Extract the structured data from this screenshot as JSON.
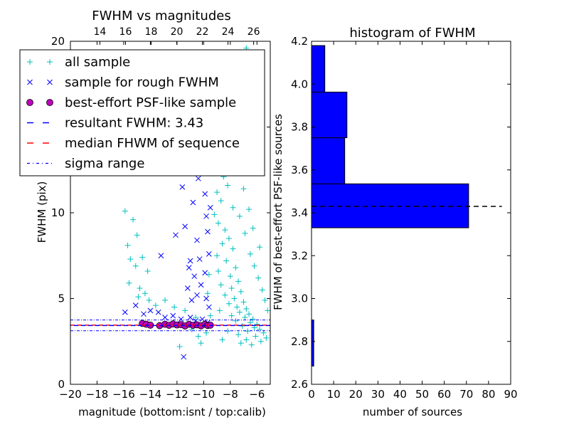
{
  "colors": {
    "all_sample": "#00bfbf",
    "rough_sample": "#0000ff",
    "psf_fill": "#bf00bf",
    "psf_edge": "#000000",
    "resultant_line": "#0000ff",
    "median_line": "#ff0000",
    "sigma_line": "#0000ff",
    "hist_bar": "#0000ff",
    "hist_line": "#000000"
  },
  "chart_data": [
    {
      "type": "scatter",
      "title": "FWHM vs magnitudes",
      "xlabel": "magnitude (bottom:isnt / top:calib)",
      "ylabel": "FWHM (pix)",
      "xlim": [
        -20,
        -5
      ],
      "ylim": [
        0,
        20
      ],
      "x_ticks": [
        -20,
        -18,
        -16,
        -14,
        -12,
        -10,
        -8,
        -6
      ],
      "x_tick_labels": [
        "−20",
        "−18",
        "−16",
        "−14",
        "−12",
        "−10",
        "−8",
        "−6"
      ],
      "y_ticks": [
        0,
        5,
        10,
        15,
        20
      ],
      "y_tick_labels": [
        "0",
        "5",
        "10",
        "15",
        "20"
      ],
      "top_ticks": [
        14,
        16,
        18,
        20,
        22,
        24,
        26
      ],
      "top_tick_labels": [
        "14",
        "16",
        "18",
        "20",
        "22",
        "24",
        "26"
      ],
      "top_xlim": [
        11.7,
        27.3
      ],
      "legend_placement": "upper-left",
      "legend": [
        {
          "label": "all sample",
          "marker": "plus"
        },
        {
          "label": "sample for rough FWHM",
          "marker": "x"
        },
        {
          "label": "best-effort PSF-like sample",
          "marker": "circle"
        },
        {
          "label": "resultant FWHM: 3.43",
          "marker": "dash"
        },
        {
          "label": "median FHWM of sequence",
          "marker": "dash-red"
        },
        {
          "label": "sigma range",
          "marker": "dashdot"
        }
      ],
      "series": [
        {
          "name": "all sample",
          "marker": "plus",
          "points": [
            [
              -15.9,
              10.1
            ],
            [
              -15.3,
              9.6
            ],
            [
              -15.7,
              8.1
            ],
            [
              -15.0,
              8.7
            ],
            [
              -14.6,
              7.4
            ],
            [
              -15.5,
              7.3
            ],
            [
              -15.1,
              6.9
            ],
            [
              -14.2,
              6.6
            ],
            [
              -14.8,
              5.6
            ],
            [
              -15.6,
              5.9
            ],
            [
              -14.9,
              5.1
            ],
            [
              -14.4,
              5.3
            ],
            [
              -14.1,
              4.9
            ],
            [
              -13.6,
              4.6
            ],
            [
              -12.9,
              4.9
            ],
            [
              -12.2,
              4.5
            ],
            [
              -11.4,
              4.3
            ],
            [
              -10.9,
              3.2
            ],
            [
              -10.6,
              3.9
            ],
            [
              -10.4,
              2.8
            ],
            [
              -11.8,
              2.2
            ],
            [
              -10.2,
              2.4
            ],
            [
              -9.8,
              3.0
            ],
            [
              -9.4,
              14.5
            ],
            [
              -9.1,
              15.2
            ],
            [
              -8.8,
              13.4
            ],
            [
              -9.3,
              12.6
            ],
            [
              -8.5,
              12.1
            ],
            [
              -9.0,
              11.2
            ],
            [
              -8.7,
              10.7
            ],
            [
              -8.2,
              11.6
            ],
            [
              -9.2,
              9.9
            ],
            [
              -8.9,
              9.4
            ],
            [
              -8.4,
              9.0
            ],
            [
              -8.1,
              8.5
            ],
            [
              -8.6,
              8.2
            ],
            [
              -7.8,
              7.9
            ],
            [
              -9.0,
              7.5
            ],
            [
              -8.3,
              7.2
            ],
            [
              -7.6,
              6.8
            ],
            [
              -8.9,
              6.6
            ],
            [
              -8.0,
              6.3
            ],
            [
              -7.4,
              6.0
            ],
            [
              -8.7,
              5.8
            ],
            [
              -7.9,
              5.6
            ],
            [
              -7.2,
              5.4
            ],
            [
              -8.4,
              5.2
            ],
            [
              -7.7,
              5.0
            ],
            [
              -7.0,
              4.8
            ],
            [
              -8.1,
              4.7
            ],
            [
              -7.5,
              4.5
            ],
            [
              -6.8,
              4.4
            ],
            [
              -8.8,
              4.3
            ],
            [
              -7.3,
              4.2
            ],
            [
              -6.6,
              4.1
            ],
            [
              -7.9,
              4.0
            ],
            [
              -6.9,
              3.9
            ],
            [
              -6.3,
              3.8
            ],
            [
              -7.6,
              3.7
            ],
            [
              -6.5,
              3.6
            ],
            [
              -6.0,
              3.5
            ],
            [
              -7.1,
              3.4
            ],
            [
              -6.2,
              3.3
            ],
            [
              -5.8,
              3.2
            ],
            [
              -6.7,
              3.1
            ],
            [
              -5.5,
              3.0
            ],
            [
              -7.4,
              2.9
            ],
            [
              -6.1,
              2.8
            ],
            [
              -5.3,
              2.7
            ],
            [
              -6.8,
              2.6
            ],
            [
              -5.7,
              2.5
            ],
            [
              -7.2,
              2.4
            ],
            [
              -6.4,
              2.3
            ],
            [
              -8.6,
              2.6
            ],
            [
              -8.2,
              3.1
            ],
            [
              -9.5,
              4.0
            ],
            [
              -9.7,
              5.3
            ],
            [
              -9.6,
              6.4
            ],
            [
              -7.3,
              9.8
            ],
            [
              -7.8,
              10.3
            ],
            [
              -7.0,
              11.4
            ],
            [
              -6.9,
              8.8
            ],
            [
              -6.5,
              7.6
            ],
            [
              -6.2,
              6.9
            ],
            [
              -5.9,
              6.2
            ],
            [
              -5.6,
              5.5
            ],
            [
              -5.4,
              4.9
            ],
            [
              -5.2,
              4.3
            ],
            [
              -8.5,
              15.9
            ],
            [
              -8.0,
              17.5
            ],
            [
              -7.7,
              18.9
            ],
            [
              -6.8,
              19.6
            ],
            [
              -8.9,
              17.0
            ],
            [
              -7.5,
              13.2
            ],
            [
              -7.1,
              12.5
            ],
            [
              -6.6,
              10.2
            ],
            [
              -6.3,
              9.1
            ],
            [
              -5.8,
              8.0
            ]
          ]
        },
        {
          "name": "sample for rough FWHM",
          "marker": "x",
          "points": [
            [
              -15.9,
              4.2
            ],
            [
              -15.1,
              4.6
            ],
            [
              -14.5,
              4.1
            ],
            [
              -14.0,
              4.3
            ],
            [
              -13.4,
              4.2
            ],
            [
              -12.9,
              3.9
            ],
            [
              -12.3,
              4.0
            ],
            [
              -11.7,
              3.8
            ],
            [
              -11.0,
              3.9
            ],
            [
              -10.6,
              3.7
            ],
            [
              -10.1,
              3.8
            ],
            [
              -9.7,
              3.6
            ],
            [
              -11.5,
              1.6
            ],
            [
              -13.2,
              7.5
            ],
            [
              -12.1,
              8.7
            ],
            [
              -11.8,
              12.8
            ],
            [
              -11.6,
              11.5
            ],
            [
              -11.2,
              13.0
            ],
            [
              -11.4,
              9.2
            ],
            [
              -11.1,
              6.8
            ],
            [
              -10.8,
              10.6
            ],
            [
              -10.5,
              8.4
            ],
            [
              -10.3,
              7.3
            ],
            [
              -10.0,
              12.3
            ],
            [
              -9.9,
              11.1
            ],
            [
              -9.8,
              9.8
            ],
            [
              -9.7,
              8.9
            ],
            [
              -9.6,
              7.6
            ],
            [
              -9.9,
              6.5
            ],
            [
              -10.2,
              5.8
            ],
            [
              -10.5,
              5.2
            ],
            [
              -10.9,
              4.9
            ],
            [
              -11.2,
              5.6
            ],
            [
              -9.8,
              5.0
            ],
            [
              -9.6,
              4.5
            ],
            [
              -9.9,
              14.5
            ],
            [
              -10.4,
              12.0
            ],
            [
              -10.7,
              6.3
            ],
            [
              -11.0,
              7.2
            ],
            [
              -9.5,
              10.3
            ]
          ]
        },
        {
          "name": "best-effort PSF-like sample",
          "marker": "circle",
          "points": [
            [
              -14.6,
              3.55
            ],
            [
              -14.3,
              3.5
            ],
            [
              -14.0,
              3.45
            ],
            [
              -13.3,
              3.42
            ],
            [
              -12.9,
              3.5
            ],
            [
              -12.6,
              3.44
            ],
            [
              -12.3,
              3.52
            ],
            [
              -12.0,
              3.46
            ],
            [
              -11.7,
              3.48
            ],
            [
              -11.4,
              3.4
            ],
            [
              -11.1,
              3.5
            ],
            [
              -10.8,
              3.44
            ],
            [
              -10.5,
              3.47
            ],
            [
              -10.2,
              3.41
            ],
            [
              -9.9,
              3.5
            ],
            [
              -9.7,
              3.43
            ],
            [
              -9.5,
              3.45
            ]
          ]
        }
      ],
      "hlines": [
        {
          "name": "resultant FWHM: 3.43",
          "y": 3.43,
          "style": "dashed"
        },
        {
          "name": "median FHWM of sequence",
          "y": 3.45,
          "style": "dashed"
        },
        {
          "name": "sigma range",
          "y": 3.75,
          "style": "dashdot"
        },
        {
          "name": "sigma range",
          "y": 3.12,
          "style": "dashdot"
        }
      ]
    },
    {
      "type": "bar",
      "orientation": "horizontal",
      "title": "histogram of FWHM",
      "xlabel": "number of sources",
      "ylabel": "FWHM of best-effort PSF-like sources",
      "xlim": [
        0,
        90
      ],
      "ylim": [
        2.6,
        4.2
      ],
      "x_ticks": [
        0,
        10,
        20,
        30,
        40,
        50,
        60,
        70,
        80,
        90
      ],
      "x_tick_labels": [
        "0",
        "10",
        "20",
        "30",
        "40",
        "50",
        "60",
        "70",
        "80",
        "90"
      ],
      "y_ticks": [
        2.6,
        2.8,
        3.0,
        3.2,
        3.4,
        3.6,
        3.8,
        4.0,
        4.2
      ],
      "y_tick_labels": [
        "2.6",
        "2.8",
        "3.0",
        "3.2",
        "3.4",
        "3.6",
        "3.8",
        "4.0",
        "4.2"
      ],
      "bins": [
        {
          "y0": 2.685,
          "y1": 2.9,
          "count": 1
        },
        {
          "y0": 3.33,
          "y1": 3.535,
          "count": 71
        },
        {
          "y0": 3.535,
          "y1": 3.75,
          "count": 15
        },
        {
          "y0": 3.75,
          "y1": 3.963,
          "count": 16
        },
        {
          "y0": 3.963,
          "y1": 4.18,
          "count": 6
        }
      ],
      "hline": {
        "name": "resultant FWHM: 3.43",
        "y": 3.43,
        "xmax": 86,
        "style": "dashed"
      }
    }
  ]
}
